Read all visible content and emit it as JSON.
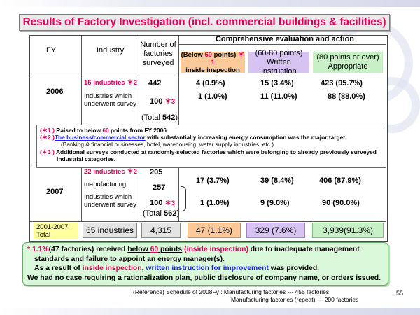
{
  "title": "Results of Factory Investigation (incl. commercial buildings & facilities)",
  "headers": {
    "fy": "FY",
    "industry": "Industry",
    "factories_line1": "Number of",
    "factories_line2": "factories",
    "factories_line3": "surveyed",
    "comprehensive": "Comprehensive evaluation and action",
    "below60_a": "(Below ",
    "below60_b": "60",
    "below60_c": " points)",
    "below60_mark": "＊1",
    "below60_line2": "inside inspection",
    "mid_line1": "(60-80 points)",
    "mid_line2": "Written instruction",
    "high_line1": "(80 points or over)",
    "high_line2": "Appropriate"
  },
  "fy2006": {
    "year": "2006",
    "row1_label": "15 industries",
    "row1_mark": "＊2",
    "row1_count": "442",
    "row1_below": "4  (0.9%)",
    "row1_mid": "15   (3.4%)",
    "row1_high": "423 (95.7%)",
    "row2_label_line1": "Industries which",
    "row2_label_line2": "underwent survey",
    "row2_count": "100",
    "row2_mark": "＊3",
    "row2_below": "1   (1.0%)",
    "row2_mid": "11   (11.0%)",
    "row2_high": "88  (88.0%)",
    "total_a": "(Total ",
    "total_b": "542",
    "total_c": ")"
  },
  "notes": {
    "n1_mark": "(＊1 )",
    "n1_a": " Raised to below ",
    "n1_b": "60",
    "n1_c": " points from FY 2006",
    "n2_mark": "(＊2 )",
    "n2_link": "The business/commercial sector",
    "n2_rest": " with substantially increasing energy consumption was the major target.",
    "n2_line2": "(Banking & financial businesses, hotel, warehousing, water supply industries, etc.)",
    "n3_mark": "(＊3 )",
    "n3_text": " Additional surveys conducted at randomly-selected factories which were belonging to already previously surveyed",
    "n3_line2": "industrial categories."
  },
  "fy2007": {
    "year": "2007",
    "row1_label": "22 industries",
    "row1_mark": "＊2",
    "row1_count": "205",
    "row_mfg_label": "manufacturing",
    "row_mfg_count": "257",
    "row3_label_line1": "Industries which",
    "row3_label_line2": "underwent survey",
    "row3_count": "100",
    "row3_mark": "＊3",
    "below_a": "17   (3.7%)",
    "mid_a": "39   (8.4%)",
    "high_a": "406 (87.9%)",
    "below_b": "1   (1.0%)",
    "mid_b": "9   (9.0%)",
    "high_b": "90   (90.0%)",
    "total_a": "(Total ",
    "total_b": "562",
    "total_c": ")"
  },
  "total_row": {
    "label_line1": "2001-2007",
    "label_line2": "Total",
    "industries": "65 industries",
    "count": "4,315",
    "below": "47  (1.1%)",
    "mid": "329  (7.6%)",
    "high": "3,939(91.3%)"
  },
  "summary": {
    "l1_star": "* ",
    "l1_pct": "1.1%",
    "l1_a": "(47 factories) received ",
    "l1_below": "below ",
    "l1_60": "60",
    "l1_points": " points",
    "l1_space": " ",
    "l1_inside": "(inside inspection)",
    "l1_b": "  due to    inadequate management",
    "l2": "standards and failure to appoint an energy manager(s).",
    "l3_a": "As a result of ",
    "l3_inside": "inside inspection",
    "l3_comma": ", ",
    "l3_written": "written instruction for improvement",
    "l3_b": " was provided.",
    "l4": "We had no case requiring a rationalization plan, public disclosure of company name, or orders issued."
  },
  "reference": {
    "line1": "(Reference)  Schedule of 2008Fy :  Manufacturing factories ---  455 factories",
    "line2": "Manufacturing factories (repeat) --- 200 factories"
  },
  "page_number": "55",
  "colors": {
    "title": "#e0005a",
    "accent_red": "#e0005a",
    "link_blue": "#1a1aff",
    "below60_fill": "#fbc99a",
    "mid_fill": "#d7c3f2",
    "high_fill": "#c7f0c7",
    "total_label_fill": "#ffffa0",
    "summary_fill": "#d9f7d9"
  }
}
